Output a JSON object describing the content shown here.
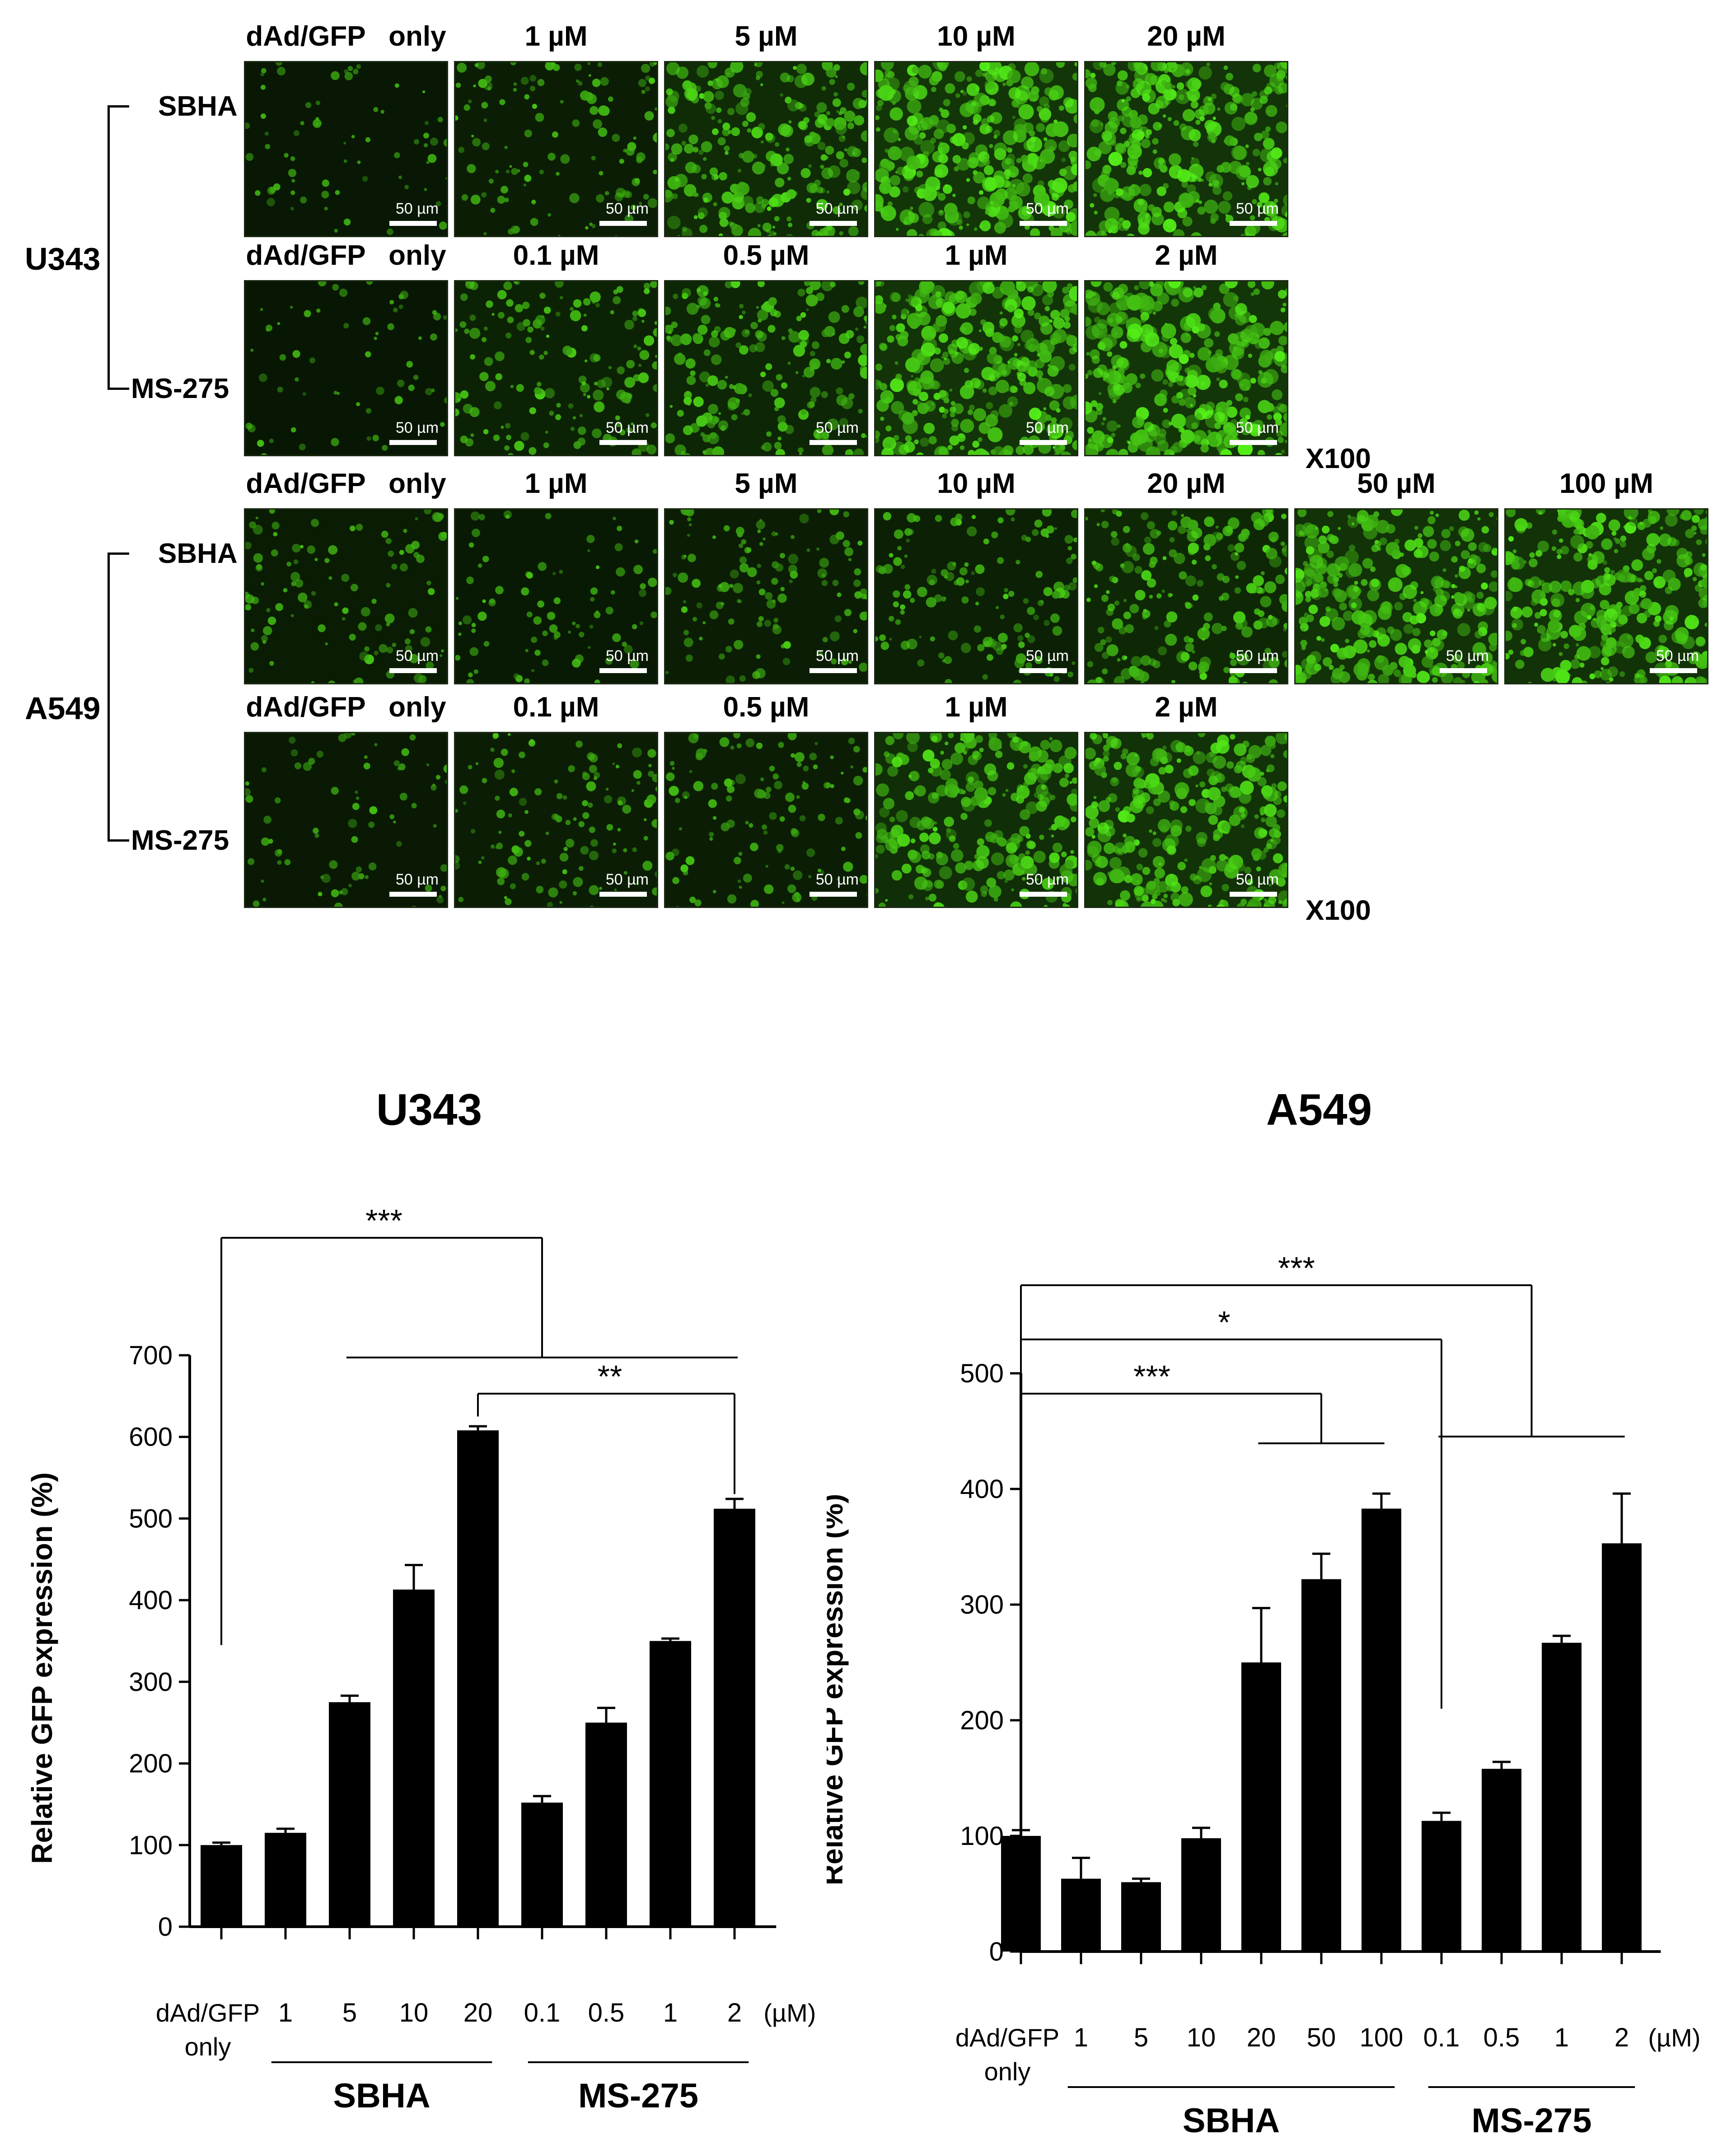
{
  "micrographs": {
    "cell_lines": [
      {
        "name": "U343",
        "rows": [
          {
            "drug": "SBHA",
            "conditions": [
              "dAd/GFP   only",
              "1 µM",
              "5 µM",
              "10 µM",
              "20 µM"
            ],
            "intensity": [
              0.1,
              0.25,
              0.6,
              0.85,
              0.8
            ]
          },
          {
            "drug": "MS-275",
            "conditions": [
              "dAd/GFP   only",
              "0.1 µM",
              "0.5 µM",
              "1 µM",
              "2 µM"
            ],
            "intensity": [
              0.08,
              0.35,
              0.45,
              0.8,
              0.85
            ]
          }
        ]
      },
      {
        "name": "A549",
        "rows": [
          {
            "drug": "SBHA",
            "conditions": [
              "dAd/GFP   only",
              "1 µM",
              "5 µM",
              "10 µM",
              "20 µM",
              "50 µM",
              "100 µM"
            ],
            "intensity": [
              0.2,
              0.15,
              0.25,
              0.3,
              0.5,
              0.75,
              0.75
            ]
          },
          {
            "drug": "MS-275",
            "conditions": [
              "dAd/GFP   only",
              "0.1 µM",
              "0.5 µM",
              "1 µM",
              "2 µM"
            ],
            "intensity": [
              0.12,
              0.25,
              0.25,
              0.65,
              0.75
            ]
          }
        ]
      }
    ],
    "scale_bar": "50 µm",
    "magnification": "X100"
  },
  "chart_data": [
    {
      "type": "bar",
      "title": "U343",
      "ylabel": "Relative  GFP expression (%)",
      "ylim": [
        0,
        700
      ],
      "yticks": [
        0,
        100,
        200,
        300,
        400,
        500,
        600,
        700
      ],
      "categories": [
        "dAd/GFP only",
        "1",
        "5",
        "10",
        "20",
        "0.1",
        "0.5",
        "1",
        "2"
      ],
      "category_lines": [
        [
          "dAd/GFP",
          "only"
        ],
        [
          "1"
        ],
        [
          "5"
        ],
        [
          "10"
        ],
        [
          "20"
        ],
        [
          "0.1"
        ],
        [
          "0.5"
        ],
        [
          "1"
        ],
        [
          "2"
        ]
      ],
      "unit": "(µM)",
      "values": [
        100,
        115,
        275,
        413,
        608,
        152,
        250,
        350,
        512
      ],
      "errors": [
        3,
        5,
        8,
        30,
        5,
        8,
        18,
        3,
        12
      ],
      "groups": [
        {
          "label": "SBHA",
          "from": 1,
          "to": 4
        },
        {
          "label": "MS-275",
          "from": 5,
          "to": 8
        }
      ],
      "significance": [
        {
          "label": "***",
          "from": 0,
          "to_range": [
            2,
            8
          ]
        },
        {
          "label": "**",
          "from": 4,
          "to": 8
        }
      ]
    },
    {
      "type": "bar",
      "title": "A549",
      "ylabel": "Relative  GFP expression (%)",
      "ylim": [
        0,
        500
      ],
      "yticks": [
        0,
        100,
        200,
        300,
        400,
        500
      ],
      "categories": [
        "dAd/GFP only",
        "1",
        "5",
        "10",
        "20",
        "50",
        "100",
        "0.1",
        "0.5",
        "1",
        "2"
      ],
      "category_lines": [
        [
          "dAd/GFP",
          "only"
        ],
        [
          "1"
        ],
        [
          "5"
        ],
        [
          "10"
        ],
        [
          "20"
        ],
        [
          "50"
        ],
        [
          "100"
        ],
        [
          "0.1"
        ],
        [
          "0.5"
        ],
        [
          "1"
        ],
        [
          "2"
        ]
      ],
      "unit": "(µM)",
      "values": [
        100,
        63,
        60,
        98,
        250,
        322,
        383,
        113,
        158,
        267,
        353
      ],
      "errors": [
        5,
        18,
        3,
        9,
        47,
        22,
        13,
        7,
        6,
        6,
        43
      ],
      "groups": [
        {
          "label": "SBHA",
          "from": 1,
          "to": 6
        },
        {
          "label": "MS-275",
          "from": 7,
          "to": 10
        }
      ],
      "significance": [
        {
          "label": "***",
          "from": 0,
          "to_range": [
            7,
            10
          ]
        },
        {
          "label": "*",
          "from": 0,
          "to": 7
        },
        {
          "label": "***",
          "from": 0,
          "to_range": [
            4,
            6
          ]
        }
      ]
    }
  ]
}
